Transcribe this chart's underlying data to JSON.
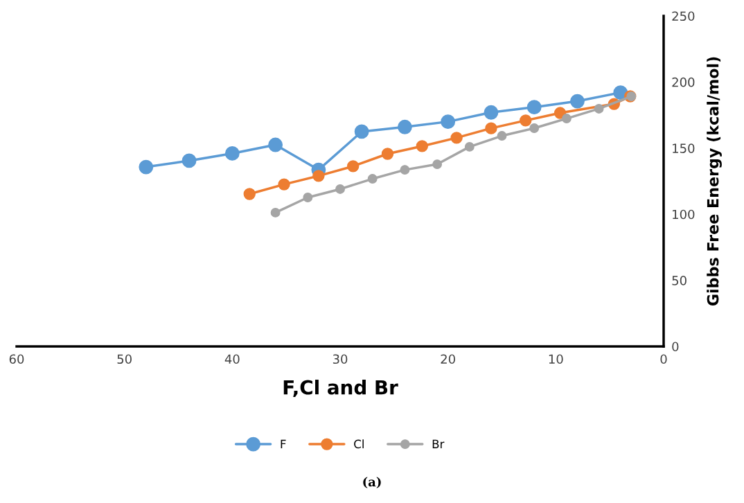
{
  "chart_data": {
    "type": "line",
    "xlabel": "F,Cl and Br",
    "ylabel": "Gibbs Free Energy (kcal/mol)",
    "xlim": [
      60,
      0
    ],
    "xticks": [
      60,
      50,
      40,
      30,
      20,
      10,
      0
    ],
    "ylim": [
      0,
      250
    ],
    "yticks": [
      0,
      50,
      100,
      150,
      200,
      250
    ],
    "grid": false,
    "legend": "bottom",
    "marker": "circle",
    "line_style": "solid",
    "series": [
      {
        "name": "F",
        "color": "#5b9bd5",
        "x": [
          48,
          44,
          40,
          36,
          32,
          28,
          24,
          20,
          16,
          12,
          8,
          4
        ],
        "values": [
          135.7,
          140.5,
          146,
          152.5,
          133.6,
          162.5,
          166,
          170,
          177,
          181,
          185.5,
          192
        ]
      },
      {
        "name": "Cl",
        "color": "#ed7d31",
        "x": [
          38.4,
          35.2,
          32,
          28.8,
          25.6,
          22.4,
          19.2,
          16,
          12.8,
          9.6,
          4.6,
          3.1
        ],
        "values": [
          115.3,
          122.6,
          129,
          136.3,
          145.7,
          151.5,
          157.8,
          165,
          170.9,
          176.6,
          183.4,
          189.2
        ]
      },
      {
        "name": "Br",
        "color": "#a5a5a5",
        "x": [
          36,
          33,
          30,
          27,
          24,
          21,
          18,
          15,
          12,
          9,
          6,
          3
        ],
        "values": [
          101.2,
          112.7,
          119,
          126.8,
          133.6,
          137.8,
          151,
          159.3,
          165.1,
          172.4,
          179.8,
          189.2
        ]
      }
    ],
    "annotations": [
      "(a)"
    ]
  }
}
